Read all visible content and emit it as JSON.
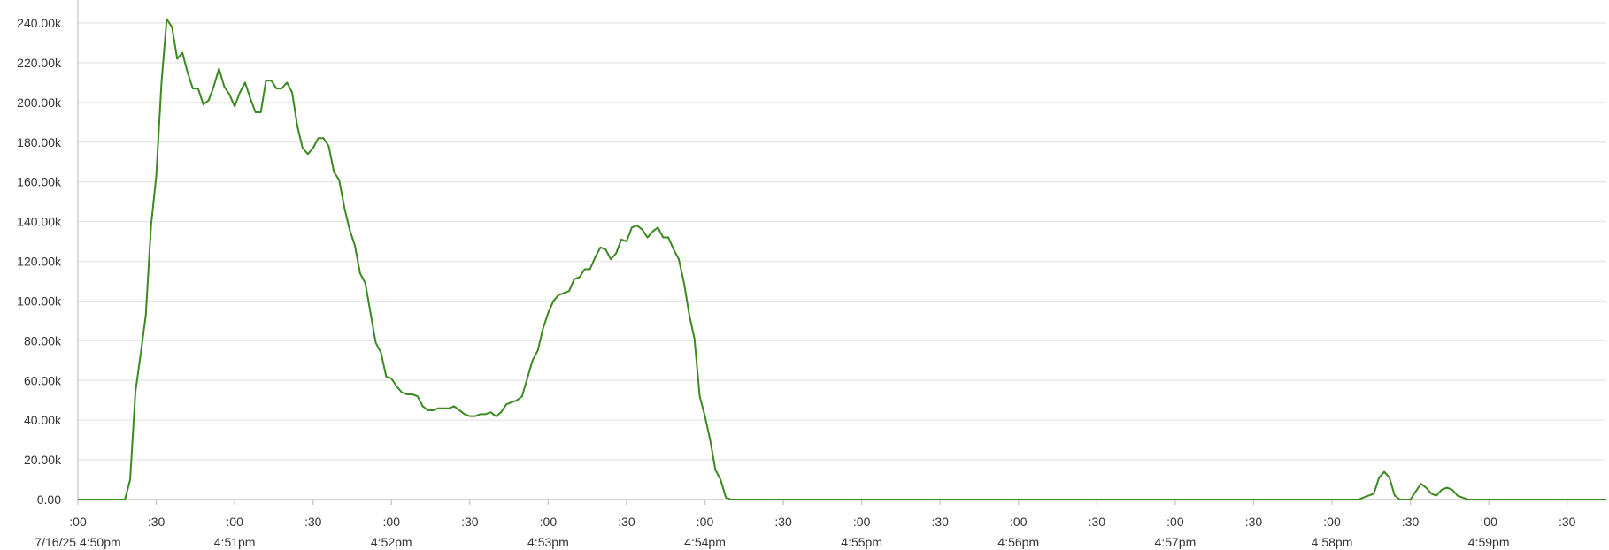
{
  "chart_data": {
    "type": "line",
    "title": "",
    "xlabel": "",
    "ylabel": "",
    "y_ticks": [
      "0.00",
      "20.00k",
      "40.00k",
      "60.00k",
      "80.00k",
      "100.00k",
      "120.00k",
      "140.00k",
      "160.00k",
      "180.00k",
      "200.00k",
      "220.00k",
      "240.00k"
    ],
    "ylim": [
      0,
      240000
    ],
    "x_range_seconds": [
      0,
      585
    ],
    "x_ticks": [
      {
        "sec": 0,
        "minor": ":00",
        "major": "7/16/25 4:50pm"
      },
      {
        "sec": 30,
        "minor": ":30",
        "major": ""
      },
      {
        "sec": 60,
        "minor": ":00",
        "major": "4:51pm"
      },
      {
        "sec": 90,
        "minor": ":30",
        "major": ""
      },
      {
        "sec": 120,
        "minor": ":00",
        "major": "4:52pm"
      },
      {
        "sec": 150,
        "minor": ":30",
        "major": ""
      },
      {
        "sec": 180,
        "minor": ":00",
        "major": "4:53pm"
      },
      {
        "sec": 210,
        "minor": ":30",
        "major": ""
      },
      {
        "sec": 240,
        "minor": ":00",
        "major": "4:54pm"
      },
      {
        "sec": 270,
        "minor": ":30",
        "major": ""
      },
      {
        "sec": 300,
        "minor": ":00",
        "major": "4:55pm"
      },
      {
        "sec": 330,
        "minor": ":30",
        "major": ""
      },
      {
        "sec": 360,
        "minor": ":00",
        "major": "4:56pm"
      },
      {
        "sec": 390,
        "minor": ":30",
        "major": ""
      },
      {
        "sec": 420,
        "minor": ":00",
        "major": "4:57pm"
      },
      {
        "sec": 450,
        "minor": ":30",
        "major": ""
      },
      {
        "sec": 480,
        "minor": ":00",
        "major": "4:58pm"
      },
      {
        "sec": 510,
        "minor": ":30",
        "major": ""
      },
      {
        "sec": 540,
        "minor": ":00",
        "major": "4:59pm"
      },
      {
        "sec": 570,
        "minor": ":30",
        "major": ""
      }
    ],
    "grid": true,
    "legend": "none",
    "colors": {
      "line": "#3a8a1f",
      "grid": "#e8e8e8",
      "axis": "#c9c9c9",
      "text": "#333333"
    },
    "series": [
      {
        "name": "",
        "points": [
          [
            0,
            0
          ],
          [
            12,
            0
          ],
          [
            16,
            0
          ],
          [
            18,
            0
          ],
          [
            20,
            10000
          ],
          [
            22,
            54000
          ],
          [
            24,
            73000
          ],
          [
            26,
            93000
          ],
          [
            28,
            138000
          ],
          [
            30,
            163000
          ],
          [
            32,
            210000
          ],
          [
            34,
            242000
          ],
          [
            36,
            238000
          ],
          [
            38,
            222000
          ],
          [
            40,
            225000
          ],
          [
            42,
            215000
          ],
          [
            44,
            207000
          ],
          [
            46,
            207000
          ],
          [
            48,
            199000
          ],
          [
            50,
            201000
          ],
          [
            52,
            208000
          ],
          [
            54,
            217000
          ],
          [
            56,
            208000
          ],
          [
            58,
            204000
          ],
          [
            60,
            198000
          ],
          [
            62,
            205000
          ],
          [
            64,
            210000
          ],
          [
            66,
            202000
          ],
          [
            68,
            195000
          ],
          [
            70,
            195000
          ],
          [
            72,
            211000
          ],
          [
            74,
            211000
          ],
          [
            76,
            207000
          ],
          [
            78,
            207000
          ],
          [
            80,
            210000
          ],
          [
            82,
            205000
          ],
          [
            84,
            188000
          ],
          [
            86,
            177000
          ],
          [
            88,
            174000
          ],
          [
            90,
            177000
          ],
          [
            92,
            182000
          ],
          [
            94,
            182000
          ],
          [
            96,
            178000
          ],
          [
            98,
            165000
          ],
          [
            100,
            161000
          ],
          [
            102,
            147000
          ],
          [
            104,
            136000
          ],
          [
            106,
            128000
          ],
          [
            108,
            114000
          ],
          [
            110,
            109000
          ],
          [
            112,
            94000
          ],
          [
            114,
            79000
          ],
          [
            116,
            74000
          ],
          [
            118,
            62000
          ],
          [
            120,
            61000
          ],
          [
            122,
            57000
          ],
          [
            124,
            54000
          ],
          [
            126,
            53000
          ],
          [
            128,
            53000
          ],
          [
            130,
            52000
          ],
          [
            132,
            47000
          ],
          [
            134,
            45000
          ],
          [
            136,
            45000
          ],
          [
            138,
            46000
          ],
          [
            140,
            46000
          ],
          [
            142,
            46000
          ],
          [
            144,
            47000
          ],
          [
            146,
            45000
          ],
          [
            148,
            43000
          ],
          [
            150,
            42000
          ],
          [
            152,
            42000
          ],
          [
            154,
            43000
          ],
          [
            156,
            43000
          ],
          [
            158,
            44000
          ],
          [
            160,
            42000
          ],
          [
            162,
            44000
          ],
          [
            164,
            48000
          ],
          [
            166,
            49000
          ],
          [
            168,
            50000
          ],
          [
            170,
            52000
          ],
          [
            172,
            61000
          ],
          [
            174,
            70000
          ],
          [
            176,
            75000
          ],
          [
            178,
            86000
          ],
          [
            180,
            94000
          ],
          [
            182,
            100000
          ],
          [
            184,
            103000
          ],
          [
            186,
            104000
          ],
          [
            188,
            105000
          ],
          [
            190,
            111000
          ],
          [
            192,
            112000
          ],
          [
            194,
            116000
          ],
          [
            196,
            116000
          ],
          [
            198,
            122000
          ],
          [
            200,
            127000
          ],
          [
            202,
            126000
          ],
          [
            204,
            121000
          ],
          [
            206,
            124000
          ],
          [
            208,
            131000
          ],
          [
            210,
            130000
          ],
          [
            212,
            137000
          ],
          [
            214,
            138000
          ],
          [
            216,
            136000
          ],
          [
            218,
            132000
          ],
          [
            220,
            135000
          ],
          [
            222,
            137000
          ],
          [
            224,
            132000
          ],
          [
            226,
            132000
          ],
          [
            228,
            126000
          ],
          [
            230,
            121000
          ],
          [
            232,
            109000
          ],
          [
            234,
            93000
          ],
          [
            236,
            81000
          ],
          [
            238,
            52000
          ],
          [
            240,
            42000
          ],
          [
            242,
            30000
          ],
          [
            244,
            15000
          ],
          [
            246,
            10000
          ],
          [
            248,
            1000
          ],
          [
            250,
            0
          ],
          [
            260,
            0
          ],
          [
            300,
            0
          ],
          [
            400,
            0
          ],
          [
            490,
            0
          ],
          [
            492,
            1000
          ],
          [
            494,
            2000
          ],
          [
            496,
            3000
          ],
          [
            498,
            11000
          ],
          [
            500,
            14000
          ],
          [
            502,
            11000
          ],
          [
            504,
            2000
          ],
          [
            506,
            0
          ],
          [
            508,
            0
          ],
          [
            510,
            0
          ],
          [
            512,
            4000
          ],
          [
            514,
            8000
          ],
          [
            516,
            6000
          ],
          [
            518,
            3000
          ],
          [
            520,
            2000
          ],
          [
            522,
            5000
          ],
          [
            524,
            6000
          ],
          [
            526,
            5000
          ],
          [
            528,
            2000
          ],
          [
            530,
            1000
          ],
          [
            532,
            0
          ],
          [
            540,
            0
          ],
          [
            585,
            0
          ]
        ]
      }
    ]
  }
}
